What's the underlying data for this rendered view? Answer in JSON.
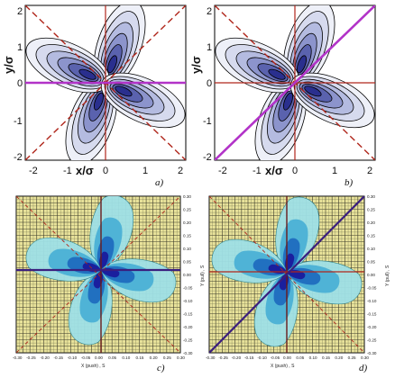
{
  "panels": [
    {
      "id": "a",
      "label": "a)",
      "ylabel": "y/σ",
      "xlabel": "x/σ",
      "yticks": [
        "2",
        "1",
        "0",
        "-1",
        "-2"
      ],
      "xticks": [
        "-2",
        "-1",
        "0",
        "1",
        "2"
      ],
      "colors": {
        "contour_outer": "#eef0f8",
        "contour_inner": "#2a2f8e",
        "solid_line": "#b0261b",
        "dashed_line": "#b0261b",
        "highlight_line": "#b233c8"
      }
    },
    {
      "id": "b",
      "label": "b)",
      "ylabel": "y/σ",
      "xlabel": "x/σ",
      "yticks": [
        "2",
        "1",
        "0",
        "-1",
        "-2"
      ],
      "xticks": [
        "-2",
        "-1",
        "0",
        "1",
        "2"
      ]
    },
    {
      "id": "c",
      "label": "c)",
      "xlabel": "X (push) , S",
      "ylabel": "Y (pull) , S",
      "yticks": [
        "0.30",
        "0.25",
        "0.20",
        "0.15",
        "0.10",
        "0.05",
        "0.00",
        "-0.05",
        "-0.10",
        "-0.15",
        "-0.20",
        "-0.25",
        "-0.30"
      ],
      "xticks": [
        "-0.30",
        "-0.25",
        "-0.20",
        "-0.15",
        "-0.10",
        "-0.05",
        "0.00",
        "0.05",
        "0.10",
        "0.15",
        "0.20",
        "0.25",
        "0.30"
      ]
    },
    {
      "id": "d",
      "label": "d)",
      "xlabel": "X (push) , S",
      "ylabel": "Y (pull) , S",
      "yticks": [
        "0.30",
        "0.25",
        "0.20",
        "0.15",
        "0.10",
        "0.05",
        "0.00",
        "-0.05",
        "-0.10",
        "-0.15",
        "-0.20",
        "-0.25",
        "-0.30"
      ],
      "xticks": [
        "-0.30",
        "-0.25",
        "-0.20",
        "-0.15",
        "-0.10",
        "-0.05",
        "0.00",
        "0.05",
        "0.10",
        "0.15",
        "0.20",
        "0.25",
        "0.30"
      ]
    }
  ]
}
